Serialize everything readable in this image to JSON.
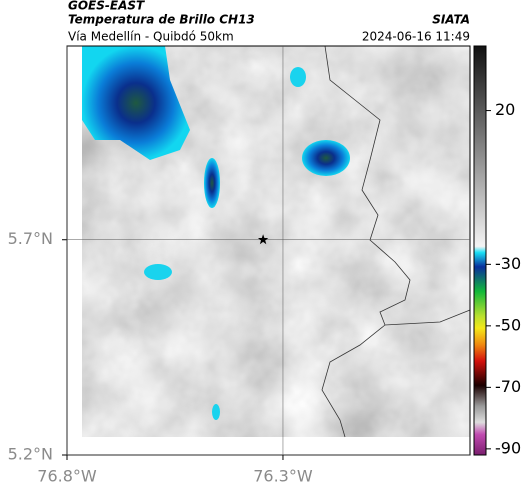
{
  "chart_data": {
    "type": "map",
    "title": "GOES-EAST",
    "subtitle": "Temperatura de Brillo CH13",
    "source": "SIATA",
    "region": "Vía Medellín - Quibdó 50km",
    "timestamp": "2024-06-16 11:49",
    "xlim": [
      -76.8,
      -75.867
    ],
    "ylim": [
      5.2,
      6.15
    ],
    "xticks": [
      {
        "value": -76.8,
        "label": "76.8°W"
      },
      {
        "value": -76.3,
        "label": "76.3°W"
      }
    ],
    "yticks": [
      {
        "value": 5.7,
        "label": "5.7°N"
      },
      {
        "value": 5.2,
        "label": "5.2°N"
      }
    ],
    "grid": true,
    "marker": {
      "x": -76.346,
      "y": 5.7
    },
    "colorbar": {
      "lim": [
        -92,
        41
      ],
      "ticks": [
        20,
        -30,
        -50,
        -70,
        -90
      ]
    }
  }
}
